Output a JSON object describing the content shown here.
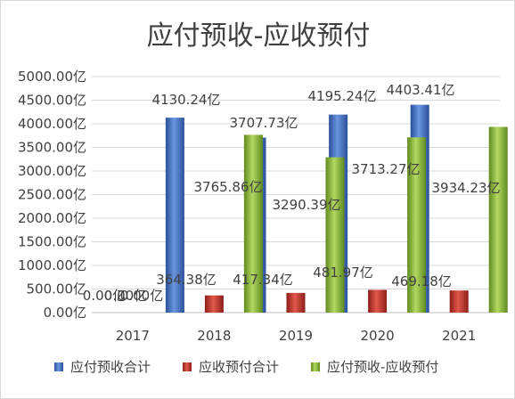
{
  "chart_data": {
    "type": "bar",
    "title": "应付预收-应收预付",
    "categories": [
      "2017",
      "2018",
      "2019",
      "2020",
      "2021"
    ],
    "series": [
      {
        "name": "应付预收合计",
        "color": "#4472c4",
        "values": [
          0.0,
          4130.24,
          3707.73,
          4195.24,
          4403.41
        ],
        "labels": [
          "0.00亿",
          "4130.24亿",
          "3707.73亿",
          "4195.24亿",
          "4403.41亿"
        ]
      },
      {
        "name": "应收预付合计",
        "color": "#c0392b",
        "values": [
          0.0,
          364.38,
          417.34,
          481.97,
          469.18
        ],
        "labels": [
          "0.00亿",
          "364.38亿",
          "417.34亿",
          "481.97亿",
          "469.18亿"
        ]
      },
      {
        "name": "应付预收-应收预付",
        "color": "#8cb63c",
        "values": [
          0.0,
          3765.86,
          3290.39,
          3713.27,
          3934.23
        ],
        "labels": [
          "0.00亿",
          "3765.86亿",
          "3290.39亿",
          "3713.27亿",
          "3934.23亿"
        ]
      }
    ],
    "y_ticks": [
      "0.00亿",
      "500.00亿",
      "1000.00亿",
      "1500.00亿",
      "2000.00亿",
      "2500.00亿",
      "3000.00亿",
      "3500.00亿",
      "4000.00亿",
      "4500.00亿",
      "5000.00亿"
    ],
    "ylim": [
      0,
      5000
    ],
    "grid": true,
    "legend_position": "bottom"
  }
}
